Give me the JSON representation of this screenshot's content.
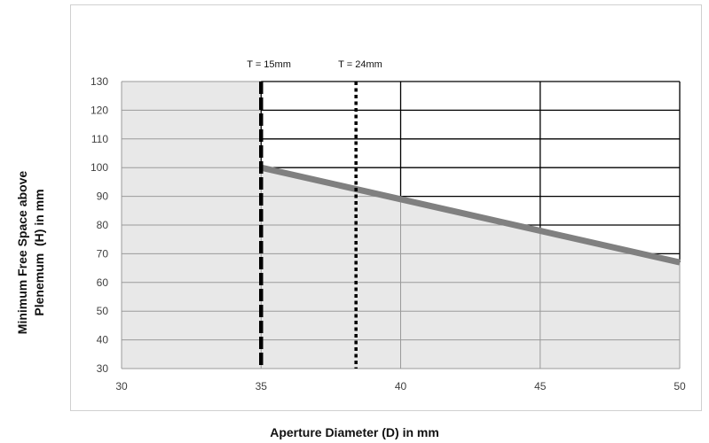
{
  "chart_data": {
    "type": "line",
    "xlabel": "Aperture Diameter (D) in mm",
    "ylabel": "Minimum Free Space above\nPlenemum  (H) in mm",
    "xlim": [
      30,
      50
    ],
    "ylim": [
      30,
      130
    ],
    "x_ticks": [
      "30",
      "35",
      "40",
      "45",
      "50"
    ],
    "y_ticks": [
      "130",
      "120",
      "110",
      "100",
      "90",
      "80",
      "70",
      "60",
      "50",
      "40",
      "30"
    ],
    "grid": true,
    "series": [
      {
        "x": [
          35,
          50
        ],
        "y": [
          100,
          67
        ],
        "color": "#808080"
      }
    ],
    "shaded_region": {
      "color": "#e8e8e8",
      "rule": "below curve; full height for x < 35"
    },
    "vlines": [
      {
        "label": "T = 15mm",
        "x": 35,
        "style": "dashed",
        "color": "#000000"
      },
      {
        "label": "T = 24mm",
        "x": 38.4,
        "style": "dotted",
        "color": "#000000"
      }
    ]
  }
}
